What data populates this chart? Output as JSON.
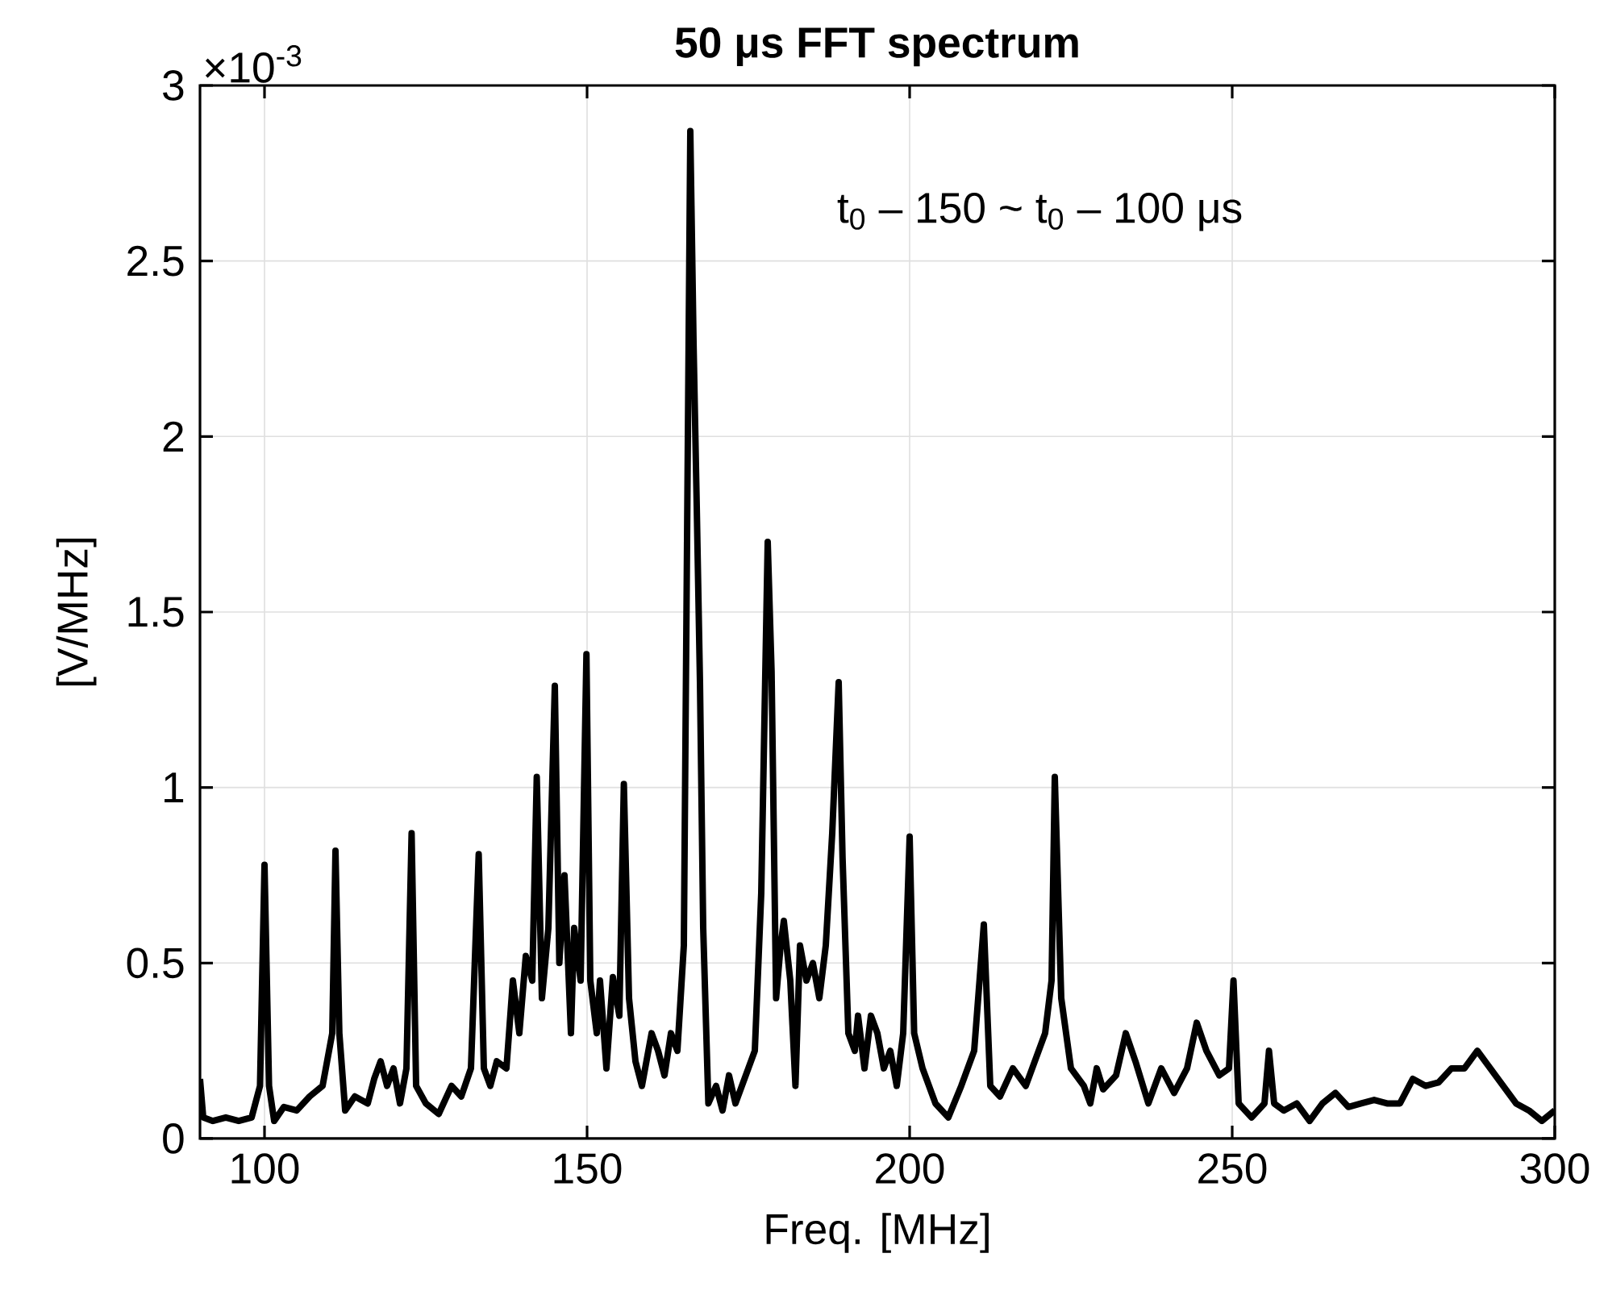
{
  "chart_data": {
    "type": "line",
    "title": "50 μs FFT spectrum",
    "xlabel": "Freq. [MHz]",
    "ylabel": "[V/MHz]",
    "annotations": [
      "×10$^{-3}$",
      "t$_{0}$ – 150  ~  t$_{0}$ – 100 μs"
    ],
    "xlim": [
      90,
      300
    ],
    "xticks": [
      100,
      150,
      200,
      250,
      300
    ],
    "ylim": [
      0,
      3
    ],
    "yticks": [
      0,
      0.5,
      1,
      1.5,
      2,
      2.5,
      3
    ],
    "grid": true,
    "marker": "none",
    "line_style": "solid",
    "series": [
      {
        "color": "#000000",
        "x": [
          90,
          90.5,
          92,
          94,
          96,
          98,
          99.3,
          100,
          100.7,
          101.5,
          103,
          105,
          107,
          109,
          110.5,
          111,
          111.6,
          112.5,
          114,
          116,
          117,
          118,
          119,
          120,
          121,
          122,
          122.8,
          123.5,
          125,
          127,
          129,
          130.5,
          132,
          133.2,
          134,
          135,
          136,
          137.5,
          138.5,
          139.5,
          140.5,
          141.5,
          142.2,
          143,
          144,
          145,
          145.7,
          146.5,
          147.5,
          148,
          149,
          149.9,
          150.5,
          151.5,
          152,
          153,
          154,
          155,
          155.7,
          156.5,
          157.5,
          158.5,
          160,
          161,
          162,
          163,
          164,
          165,
          166,
          166.5,
          167,
          167.5,
          168,
          168.8,
          170,
          171,
          172,
          173,
          175,
          176,
          177,
          178,
          178.6,
          179.3,
          180,
          180.5,
          181.5,
          182.3,
          183,
          184,
          185,
          186,
          187,
          188,
          189,
          189.6,
          190.5,
          191.5,
          192,
          193,
          194,
          195,
          196,
          197,
          198,
          199,
          200,
          200.7,
          202,
          204,
          206,
          208,
          210,
          211.5,
          212.5,
          214,
          216,
          218,
          220,
          221,
          222,
          222.5,
          223.5,
          225,
          227,
          228,
          229,
          230,
          232,
          233.5,
          235,
          237,
          239,
          241,
          243,
          244.5,
          246,
          248,
          249.5,
          250.2,
          251,
          253,
          255,
          255.7,
          256.5,
          258,
          260,
          262,
          264,
          266,
          268,
          270,
          272,
          274,
          276,
          278,
          280,
          282,
          284,
          286,
          288,
          290,
          292,
          294,
          296,
          298,
          300
        ],
        "values": [
          0.17,
          0.06,
          0.05,
          0.06,
          0.05,
          0.06,
          0.15,
          0.78,
          0.15,
          0.05,
          0.09,
          0.08,
          0.12,
          0.15,
          0.3,
          0.82,
          0.3,
          0.08,
          0.12,
          0.1,
          0.17,
          0.22,
          0.15,
          0.2,
          0.1,
          0.2,
          0.87,
          0.15,
          0.1,
          0.07,
          0.15,
          0.12,
          0.2,
          0.81,
          0.2,
          0.15,
          0.22,
          0.2,
          0.45,
          0.3,
          0.52,
          0.45,
          1.03,
          0.4,
          0.6,
          1.29,
          0.5,
          0.75,
          0.3,
          0.6,
          0.45,
          1.38,
          0.45,
          0.3,
          0.45,
          0.2,
          0.46,
          0.35,
          1.01,
          0.4,
          0.22,
          0.15,
          0.3,
          0.25,
          0.18,
          0.3,
          0.25,
          0.55,
          2.87,
          2.27,
          1.8,
          1.3,
          0.6,
          0.1,
          0.15,
          0.08,
          0.18,
          0.1,
          0.2,
          0.25,
          0.7,
          1.7,
          1.33,
          0.4,
          0.55,
          0.62,
          0.45,
          0.15,
          0.55,
          0.45,
          0.5,
          0.4,
          0.55,
          0.87,
          1.3,
          0.8,
          0.3,
          0.25,
          0.35,
          0.2,
          0.35,
          0.3,
          0.2,
          0.25,
          0.15,
          0.3,
          0.86,
          0.3,
          0.2,
          0.1,
          0.06,
          0.15,
          0.25,
          0.61,
          0.15,
          0.12,
          0.2,
          0.15,
          0.25,
          0.3,
          0.45,
          1.03,
          0.4,
          0.2,
          0.15,
          0.1,
          0.2,
          0.14,
          0.18,
          0.3,
          0.22,
          0.1,
          0.2,
          0.13,
          0.2,
          0.33,
          0.25,
          0.18,
          0.2,
          0.45,
          0.1,
          0.06,
          0.1,
          0.25,
          0.1,
          0.08,
          0.1,
          0.05,
          0.1,
          0.13,
          0.09,
          0.1,
          0.11,
          0.1,
          0.1,
          0.17,
          0.15,
          0.16,
          0.2,
          0.2,
          0.25,
          0.2,
          0.15,
          0.1,
          0.08,
          0.05,
          0.08
        ]
      }
    ]
  }
}
